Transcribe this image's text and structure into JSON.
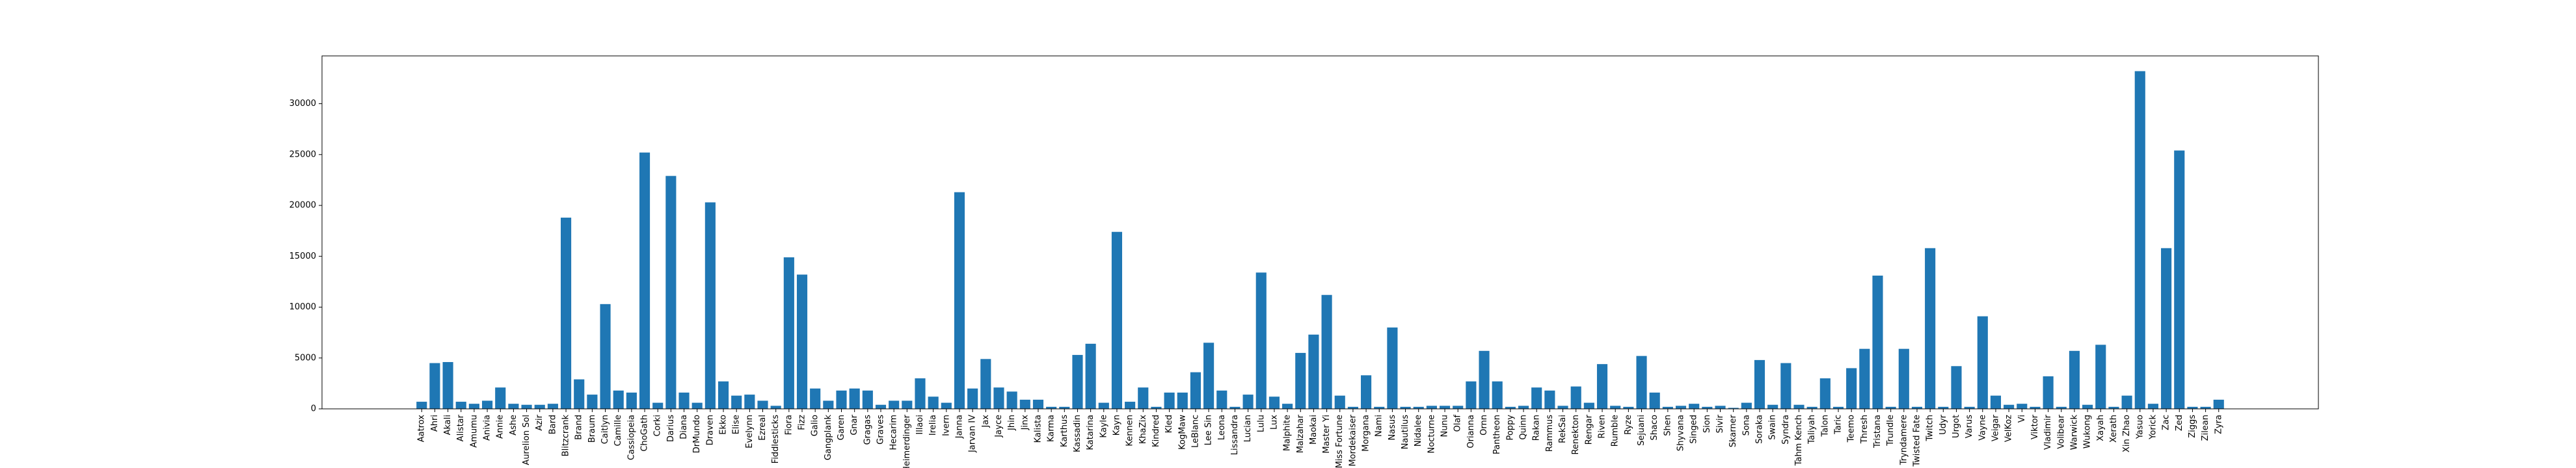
{
  "chart_data": {
    "type": "bar",
    "categories": [
      "Aatrox",
      "Ahri",
      "Akali",
      "Alistar",
      "Amumu",
      "Anivia",
      "Annie",
      "Ashe",
      "Aurelion Sol",
      "Azir",
      "Bard",
      "Blitzcrank",
      "Brand",
      "Braum",
      "Caitlyn",
      "Camille",
      "Cassiopeia",
      "ChoGath",
      "Corki",
      "Darius",
      "Diana",
      "DrMundo",
      "Draven",
      "Ekko",
      "Elise",
      "Evelynn",
      "Ezreal",
      "Fiddlesticks",
      "Fiora",
      "Fizz",
      "Galio",
      "Gangplank",
      "Garen",
      "Gnar",
      "Gragas",
      "Graves",
      "Hecarim",
      "Heimerdinger",
      "Illaoi",
      "Irelia",
      "Ivern",
      "Janna",
      "Jarvan IV",
      "Jax",
      "Jayce",
      "Jhin",
      "Jinx",
      "Kalista",
      "Karma",
      "Karthus",
      "Kassadin",
      "Katarina",
      "Kayle",
      "Kayn",
      "Kennen",
      "KhaZix",
      "Kindred",
      "Kled",
      "KogMaw",
      "LeBlanc",
      "Lee Sin",
      "Leona",
      "Lissandra",
      "Lucian",
      "Lulu",
      "Lux",
      "Malphite",
      "Malzahar",
      "Maokai",
      "Master Yi",
      "Miss Fortune",
      "Mordekaiser",
      "Morgana",
      "Nami",
      "Nasus",
      "Nautilus",
      "Nidalee",
      "Nocturne",
      "Nunu",
      "Olaf",
      "Orianna",
      "Ornn",
      "Pantheon",
      "Poppy",
      "Quinn",
      "Rakan",
      "Rammus",
      "RekSai",
      "Renekton",
      "Rengar",
      "Riven",
      "Rumble",
      "Ryze",
      "Sejuani",
      "Shaco",
      "Shen",
      "Shyvana",
      "Singed",
      "Sion",
      "Sivir",
      "Skarner",
      "Sona",
      "Soraka",
      "Swain",
      "Syndra",
      "Tahm Kench",
      "Taliyah",
      "Talon",
      "Taric",
      "Teemo",
      "Thresh",
      "Tristana",
      "Trundle",
      "Tryndamere",
      "Twisted Fate",
      "Twitch",
      "Udyr",
      "Urgot",
      "Varus",
      "Vayne",
      "Veigar",
      "VelKoz",
      "Vi",
      "Viktor",
      "Vladimir",
      "Volibear",
      "Warwick",
      "Wukong",
      "Xayah",
      "Xerath",
      "Xin Zhao",
      "Yasuo",
      "Yorick",
      "Zac",
      "Zed",
      "Ziggs",
      "Zilean",
      "Zyra"
    ],
    "values": [
      700,
      4500,
      4600,
      700,
      500,
      800,
      2100,
      500,
      400,
      400,
      500,
      18800,
      2900,
      1400,
      10300,
      1800,
      1600,
      25200,
      600,
      22900,
      1600,
      600,
      20300,
      2700,
      1300,
      1400,
      800,
      300,
      14900,
      13200,
      2000,
      800,
      1800,
      2000,
      1800,
      400,
      800,
      800,
      3000,
      1200,
      600,
      21300,
      2000,
      4900,
      2100,
      1700,
      900,
      900,
      200,
      200,
      5300,
      6400,
      600,
      17400,
      700,
      2100,
      200,
      1600,
      1600,
      3600,
      6500,
      1800,
      200,
      1400,
      13400,
      1200,
      500,
      5500,
      7300,
      11200,
      1300,
      200,
      3300,
      200,
      8000,
      200,
      200,
      300,
      300,
      300,
      2700,
      5700,
      2700,
      200,
      300,
      2100,
      1800,
      300,
      2200,
      600,
      4400,
      300,
      200,
      5200,
      1600,
      200,
      300,
      500,
      200,
      300,
      100,
      600,
      4800,
      400,
      4500,
      400,
      200,
      3000,
      200,
      4000,
      5900,
      13100,
      200,
      5900,
      200,
      15800,
      200,
      4200,
      200,
      9100,
      1300,
      400,
      500,
      200,
      3200,
      200,
      5700,
      400,
      6300,
      200,
      1300,
      33200,
      500,
      15800,
      25400,
      200,
      200,
      900
    ],
    "color": "#1f77b4",
    "ylim": [
      0,
      34700
    ],
    "yticks": [
      0,
      5000,
      10000,
      15000,
      20000,
      25000,
      30000
    ]
  }
}
